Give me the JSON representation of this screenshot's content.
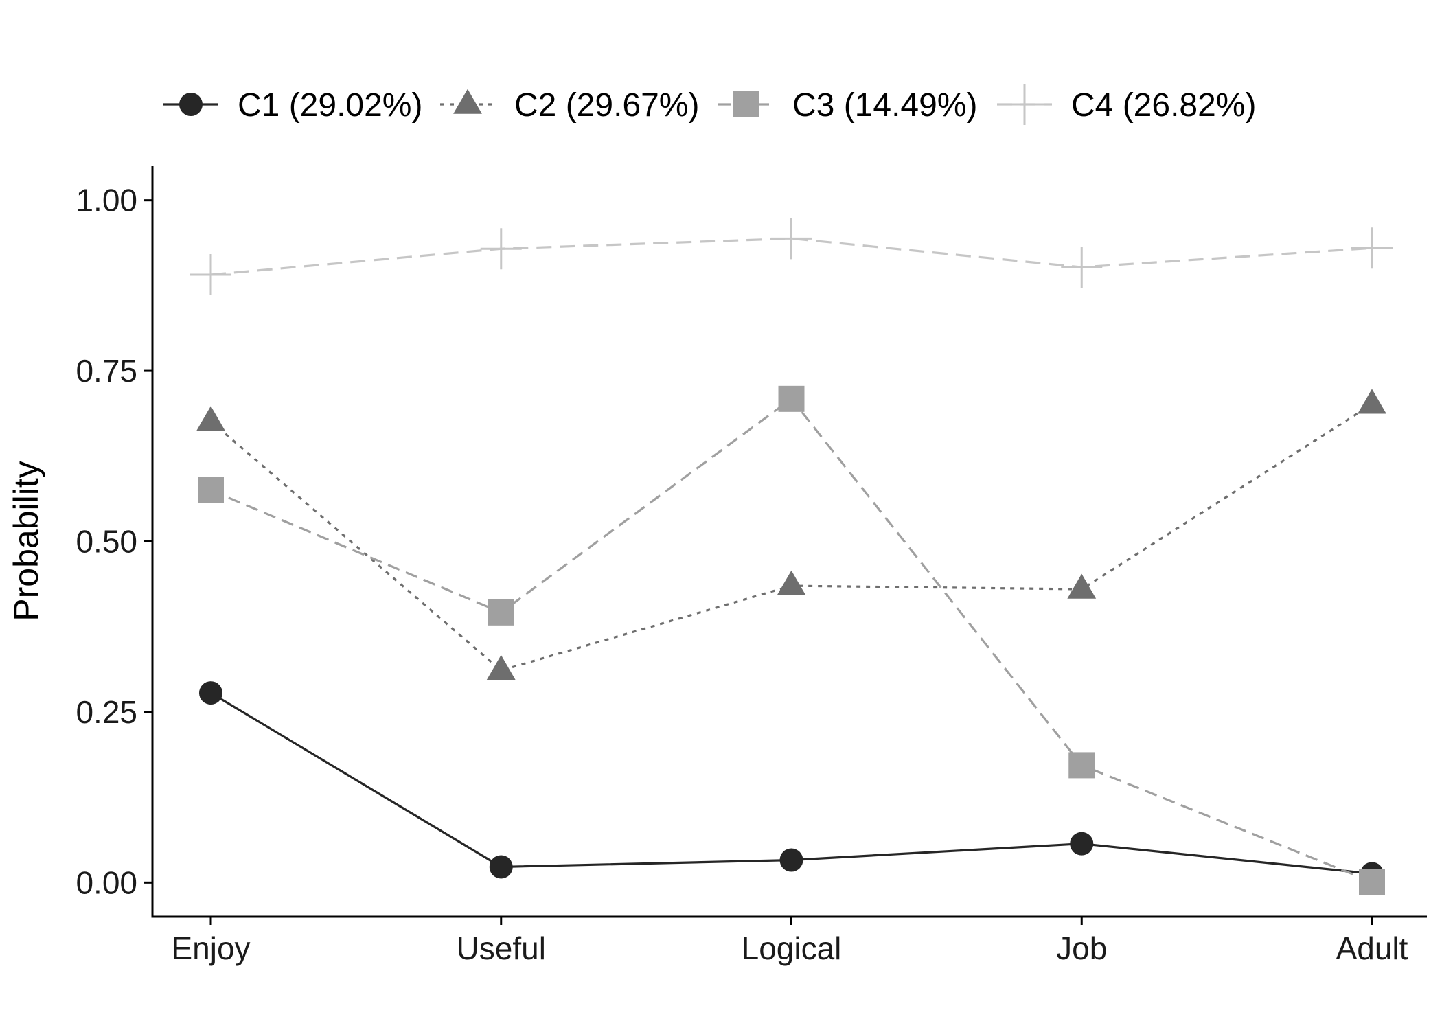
{
  "chart_data": {
    "type": "line",
    "categories": [
      "Enjoy",
      "Useful",
      "Logical",
      "Job",
      "Adult"
    ],
    "ylabel": "Probability",
    "xlabel": "",
    "ylim": [
      -0.05,
      1.05
    ],
    "yticks": [
      0.0,
      0.25,
      0.5,
      0.75,
      1.0
    ],
    "ytick_labels": [
      "0.00",
      "0.25",
      "0.50",
      "0.75",
      "1.00"
    ],
    "legend_position": "top",
    "grid": false,
    "series": [
      {
        "name": "C1 (29.02%)",
        "values": [
          0.278,
          0.023,
          0.033,
          0.057,
          0.013
        ],
        "color": "#262626",
        "marker": "circle",
        "dash": "solid"
      },
      {
        "name": "C2 (29.67%)",
        "values": [
          0.676,
          0.311,
          0.435,
          0.43,
          0.701
        ],
        "color": "#6e6e6e",
        "marker": "triangle",
        "dash": "dotted"
      },
      {
        "name": "C3 (14.49%)",
        "values": [
          0.575,
          0.396,
          0.709,
          0.172,
          0.001
        ],
        "color": "#a0a0a0",
        "marker": "square",
        "dash": "dashed"
      },
      {
        "name": "C4 (26.82%)",
        "values": [
          0.891,
          0.929,
          0.944,
          0.902,
          0.93
        ],
        "color": "#c6c6c6",
        "marker": "plus",
        "dash": "longdash"
      }
    ]
  }
}
